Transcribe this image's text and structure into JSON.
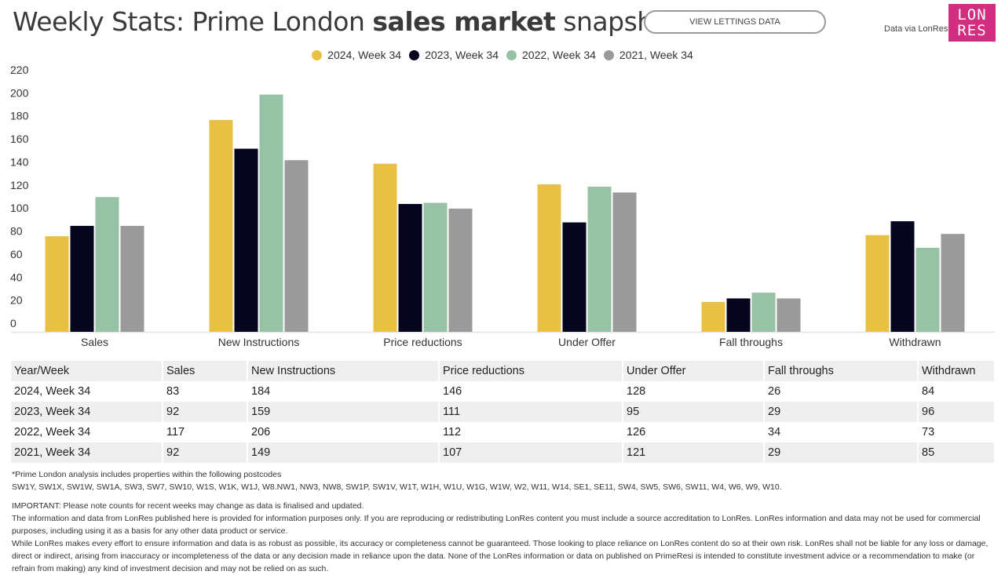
{
  "header": {
    "title_part1": "Weekly Stats: Prime London ",
    "title_bold": "sales market",
    "title_part2": " snapshot",
    "button_label": "VIEW LETTINGS DATA",
    "data_via": "Data via LonRes",
    "logo_line1": "LON",
    "logo_line2": "RES",
    "logo_color": "#d22e7f"
  },
  "chart_data": {
    "type": "bar",
    "title": "Weekly Stats: Prime London sales market snapshot",
    "xlabel": "",
    "ylabel": "",
    "ylim": [
      0,
      220
    ],
    "yticks": [
      0,
      20,
      40,
      60,
      80,
      100,
      120,
      140,
      160,
      180,
      200,
      220
    ],
    "grid": false,
    "legend_position": "top-center",
    "categories": [
      "Sales",
      "New Instructions",
      "Price reductions",
      "Under Offer",
      "Fall throughs",
      "Withdrawn"
    ],
    "series": [
      {
        "name": "2024, Week 34",
        "color": "#e8c044",
        "values": [
          83,
          184,
          146,
          128,
          26,
          84
        ]
      },
      {
        "name": "2023, Week 34",
        "color": "#05051e",
        "values": [
          92,
          159,
          111,
          95,
          29,
          96
        ]
      },
      {
        "name": "2022, Week 34",
        "color": "#98c2a6",
        "values": [
          117,
          206,
          112,
          126,
          34,
          73
        ]
      },
      {
        "name": "2021, Week 34",
        "color": "#9a9a9a",
        "values": [
          92,
          149,
          107,
          121,
          29,
          85
        ]
      }
    ]
  },
  "table": {
    "headers": [
      "Year/Week",
      "Sales",
      "New Instructions",
      "Price reductions",
      "Under Offer",
      "Fall throughs",
      "Withdrawn"
    ],
    "rows": [
      [
        "2024, Week 34",
        "83",
        "184",
        "146",
        "128",
        "26",
        "84"
      ],
      [
        "2023, Week 34",
        "92",
        "159",
        "111",
        "95",
        "29",
        "96"
      ],
      [
        "2022, Week 34",
        "117",
        "206",
        "112",
        "126",
        "34",
        "73"
      ],
      [
        "2021, Week 34",
        "92",
        "149",
        "107",
        "121",
        "29",
        "85"
      ]
    ]
  },
  "notes": {
    "postcodes_intro": "*Prime London analysis includes properties within the following postcodes",
    "postcodes": "SW1Y, SW1X, SW1W, SW1A, SW3, SW7, SW10, W1S, W1K, W1J, W8.NW1, NW3, NW8, SW1P, SW1V, W1T, W1H, W1U, W1G, W1W, W2, W11, W14, SE1, SE11, SW4, SW5, SW6, SW11, W4, W6, W9, W10.",
    "important": "IMPORTANT: Please note counts for recent weeks may change as data is finalised and updated.",
    "info": "The information and data from LonRes published here is provided for information purposes only. If you are reproducing or redistributing LonRes content you must include a source accreditation to LonRes. LonRes information and data may not be used for commercial purposes, including using it as a basis for any other data product or service.",
    "disclaimer": "While LonRes makes every effort to ensure information and data is as robust as possible, its accuracy or completeness cannot be guaranteed. Those looking to place reliance on LonRes content do so at their own risk. LonRes shall not be liable for any loss or damage, direct or indirect, arising from inaccuracy or incompleteness of the data or any decision made in reliance upon the data. None of the LonRes information or data on published on PrimeResi is intended to constitute investment advice or a recommendation to make (or refrain from making) any kind of investment decision and may not be relied on as such."
  }
}
